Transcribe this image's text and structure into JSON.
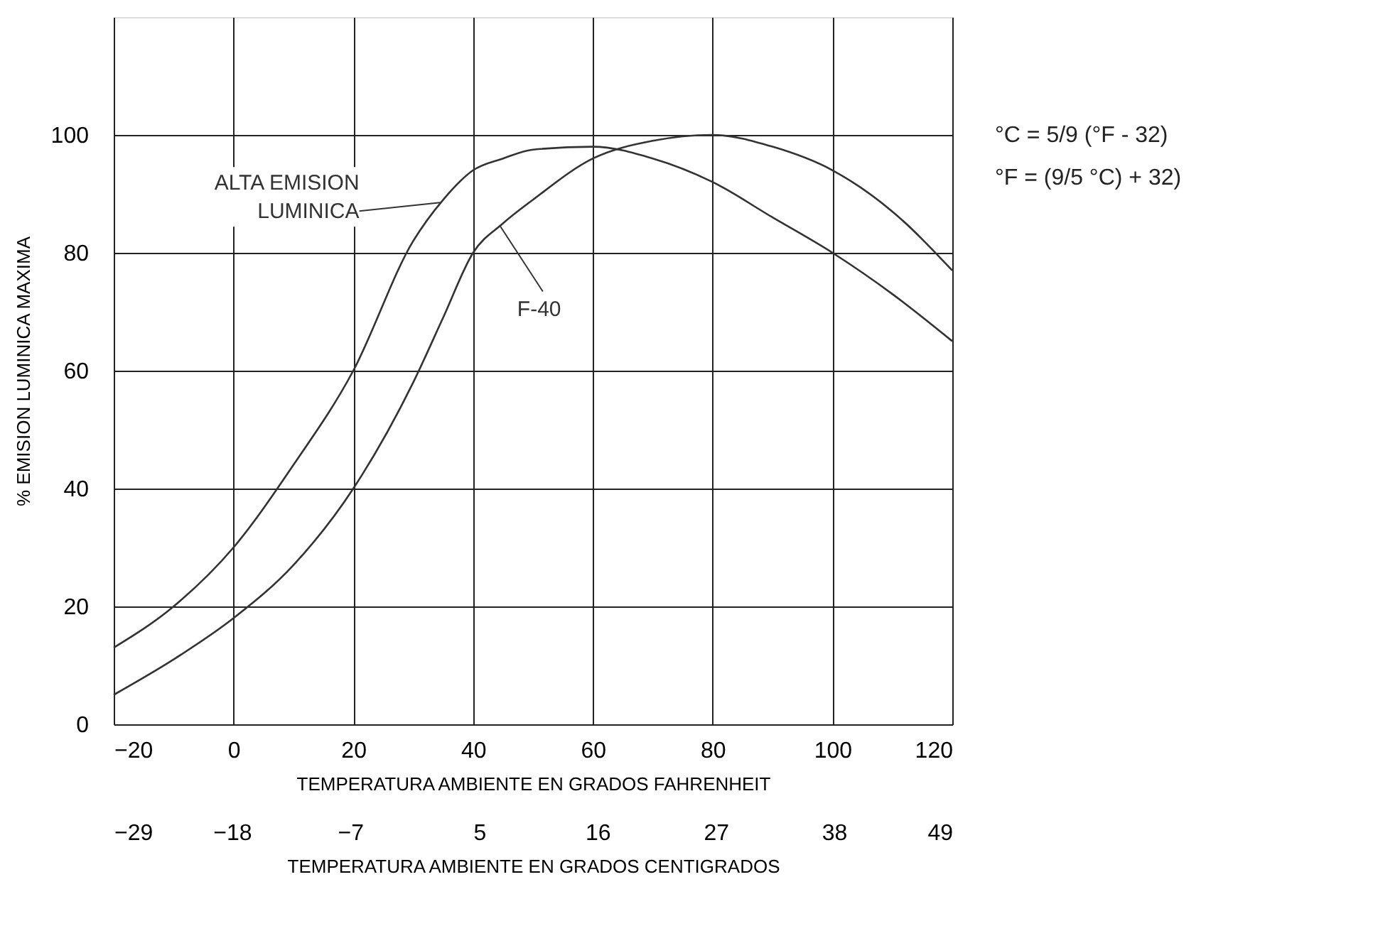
{
  "chart_data": {
    "type": "line",
    "xlabel": "TEMPERATURA AMBIENTE EN GRADOS FAHRENHEIT",
    "x2label": "TEMPERATURA AMBIENTE EN GRADOS CENTIGRADOS",
    "ylabel": "% EMISION LUMINICA MAXIMA",
    "x": [
      -20,
      -10,
      0,
      10,
      20,
      30,
      35,
      40,
      45,
      50,
      60,
      70,
      80,
      90,
      100,
      110,
      120
    ],
    "series": [
      {
        "name": "ALTA EMISION\nLUMINICA",
        "color": "#333333",
        "values": [
          13,
          20,
          30,
          44,
          60,
          82,
          89,
          94,
          96,
          97.5,
          98,
          96,
          92,
          86,
          80,
          73,
          65
        ]
      },
      {
        "name": "F-40",
        "color": "#333333",
        "values": [
          5,
          11,
          18,
          27,
          40,
          58,
          69,
          80,
          85,
          89,
          96,
          99,
          100,
          98,
          94,
          87,
          77
        ]
      }
    ],
    "xlim": [
      -20,
      120
    ],
    "xticks": [
      -20,
      0,
      20,
      40,
      60,
      80,
      100,
      120
    ],
    "x2lim": [
      -29,
      49
    ],
    "x2ticks": [
      -29,
      -18,
      -7,
      5,
      16,
      27,
      38,
      49
    ],
    "ylim": [
      0,
      120
    ],
    "yticks": [
      0,
      20,
      40,
      60,
      80,
      100
    ],
    "grid": true,
    "marker": "none",
    "line_style": "solid",
    "annotations": [
      "°C = 5/9 (°F - 32)",
      "°F  = (9/5 °C) + 32)"
    ]
  }
}
